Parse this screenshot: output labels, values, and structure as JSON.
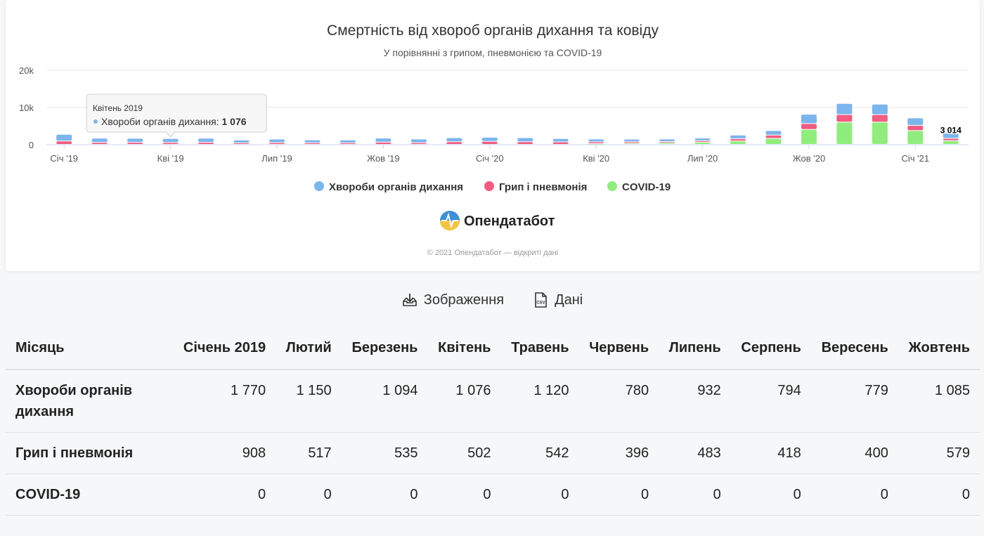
{
  "chart_data": {
    "type": "bar",
    "stacked": true,
    "title": "Смертність від хвороб органів дихання та ковіду",
    "subtitle": "У порівнянні з грипом, пневмонією та COVID-19",
    "categories": [
      "Січ '19",
      "Лют '19",
      "Бер '19",
      "Кві '19",
      "Тра '19",
      "Чер '19",
      "Лип '19",
      "Сер '19",
      "Вер '19",
      "Жов '19",
      "Лис '19",
      "Гру '19",
      "Січ '20",
      "Лют '20",
      "Бер '20",
      "Кві '20",
      "Тра '20",
      "Чер '20",
      "Лип '20",
      "Сер '20",
      "Вер '20",
      "Жов '20",
      "Лис '20",
      "Гру '20",
      "Січ '21",
      "Лют '21"
    ],
    "x_tick_labels": [
      "Січ '19",
      "Кві '19",
      "Лип '19",
      "Жов '19",
      "Січ '20",
      "Кві '20",
      "Лип '20",
      "Жов '20",
      "Січ '21"
    ],
    "y_ticks": [
      "0",
      "10k",
      "20k"
    ],
    "ylim": [
      0,
      20000
    ],
    "grid": true,
    "legend_position": "bottom",
    "series": [
      {
        "name": "COVID-19",
        "color": "#90ed7d",
        "values": [
          0,
          0,
          0,
          0,
          0,
          0,
          0,
          0,
          0,
          0,
          0,
          0,
          0,
          0,
          0,
          200,
          300,
          400,
          600,
          900,
          1600,
          4000,
          6000,
          6000,
          3700,
          1000
        ]
      },
      {
        "name": "Грип і пневмонія",
        "color": "#f15c80",
        "values": [
          908,
          517,
          535,
          502,
          542,
          396,
          483,
          418,
          400,
          579,
          450,
          700,
          800,
          700,
          650,
          450,
          400,
          350,
          400,
          600,
          900,
          1600,
          2000,
          2000,
          1400,
          600
        ]
      },
      {
        "name": "Хвороби органів дихання",
        "color": "#7cb5ec",
        "values": [
          1770,
          1150,
          1094,
          1076,
          1120,
          780,
          932,
          794,
          779,
          1085,
          1000,
          1100,
          1100,
          1100,
          900,
          800,
          700,
          700,
          700,
          1000,
          1200,
          2500,
          3000,
          2800,
          2000,
          1414
        ]
      }
    ],
    "data_label": {
      "index": 25,
      "text": "3 014"
    },
    "tooltip": {
      "index": 3,
      "title": "Квітень 2019",
      "series": "Хвороби органів дихання",
      "value": "1 076"
    }
  },
  "legend": {
    "items": [
      {
        "label": "Хвороби органів дихання",
        "color": "#7cb5ec"
      },
      {
        "label": "Грип і пневмонія",
        "color": "#f15c80"
      },
      {
        "label": "COVID-19",
        "color": "#90ed7d"
      }
    ]
  },
  "brand": {
    "name": "Опендатабот"
  },
  "credits": "© 2021 Опендатабот — відкриті дані",
  "toolbar": {
    "image_label": "Зображення",
    "data_label": "Дані"
  },
  "table": {
    "headers": [
      "Місяць",
      "Січень 2019",
      "Лютий",
      "Березень",
      "Квітень",
      "Травень",
      "Червень",
      "Липень",
      "Серпень",
      "Вересень",
      "Жовтень"
    ],
    "rows": [
      {
        "label": "Хвороби органів дихання",
        "values": [
          "1 770",
          "1 150",
          "1 094",
          "1 076",
          "1 120",
          "780",
          "932",
          "794",
          "779",
          "1 085"
        ]
      },
      {
        "label": "Грип і пневмонія",
        "values": [
          "908",
          "517",
          "535",
          "502",
          "542",
          "396",
          "483",
          "418",
          "400",
          "579"
        ]
      },
      {
        "label": "COVID-19",
        "values": [
          "0",
          "0",
          "0",
          "0",
          "0",
          "0",
          "0",
          "0",
          "0",
          "0"
        ]
      }
    ]
  }
}
